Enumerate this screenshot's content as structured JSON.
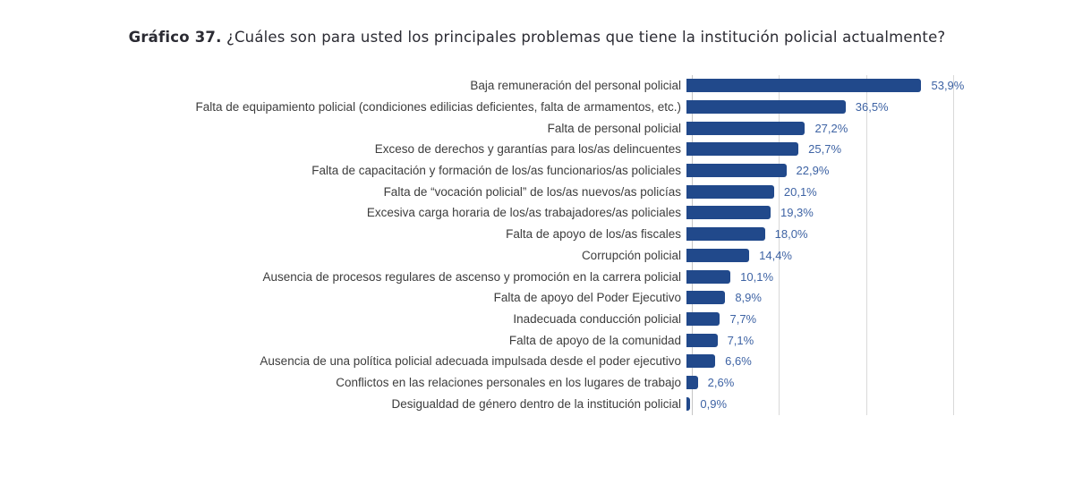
{
  "title": {
    "prefix": "Gráfico 37.",
    "rest": " ¿Cuáles son para usted los principales problemas que tiene la institución policial actualmente?"
  },
  "colors": {
    "bar": "#21498b",
    "value_label": "#3e63a4",
    "category_label": "#3d3d3d",
    "title_text": "#2b2b33",
    "gridline": "#d9d9d9",
    "axis_line": "#c6c6c6",
    "background": "#ffffff"
  },
  "chart_data": {
    "type": "bar",
    "orientation": "horizontal",
    "title": "Gráfico 37. ¿Cuáles son para usted los principales problemas que tiene la institución policial actualmente?",
    "categories": [
      "Baja remuneración del personal policial",
      "Falta de equipamiento policial (condiciones edilicias deficientes, falta de armamentos, etc.)",
      "Falta de personal policial",
      "Exceso de derechos y garantías para los/as delincuentes",
      "Falta de capacitación y formación de los/as funcionarios/as policiales",
      "Falta de “vocación policial” de los/as nuevos/as policías",
      "Excesiva carga horaria de los/as trabajadores/as policiales",
      "Falta de apoyo de los/as fiscales",
      "Corrupción policial",
      "Ausencia de procesos regulares de ascenso y promoción en la carrera policial",
      "Falta de apoyo del Poder Ejecutivo",
      "Inadecuada conducción policial",
      "Falta de apoyo de la comunidad",
      "Ausencia de una política policial adecuada impulsada desde el poder ejecutivo",
      "Conflictos en las relaciones personales en los lugares de trabajo",
      "Desigualdad de género dentro de la institución policial"
    ],
    "values": [
      53.9,
      36.5,
      27.2,
      25.7,
      22.9,
      20.1,
      19.3,
      18.0,
      14.4,
      10.1,
      8.9,
      7.7,
      7.1,
      6.6,
      2.6,
      0.9
    ],
    "value_labels": [
      "53,9%",
      "36,5%",
      "27,2%",
      "25,7%",
      "22,9%",
      "20,1%",
      "19,3%",
      "18,0%",
      "14,4%",
      "10,1%",
      "8,9%",
      "7,7%",
      "7,1%",
      "6,6%",
      "2,6%",
      "0,9%"
    ],
    "xlim": [
      0,
      82
    ],
    "gridlines_percent": [
      0,
      20,
      40,
      60
    ],
    "grid": "vertical",
    "legend": false,
    "xlabel": "",
    "ylabel": ""
  }
}
